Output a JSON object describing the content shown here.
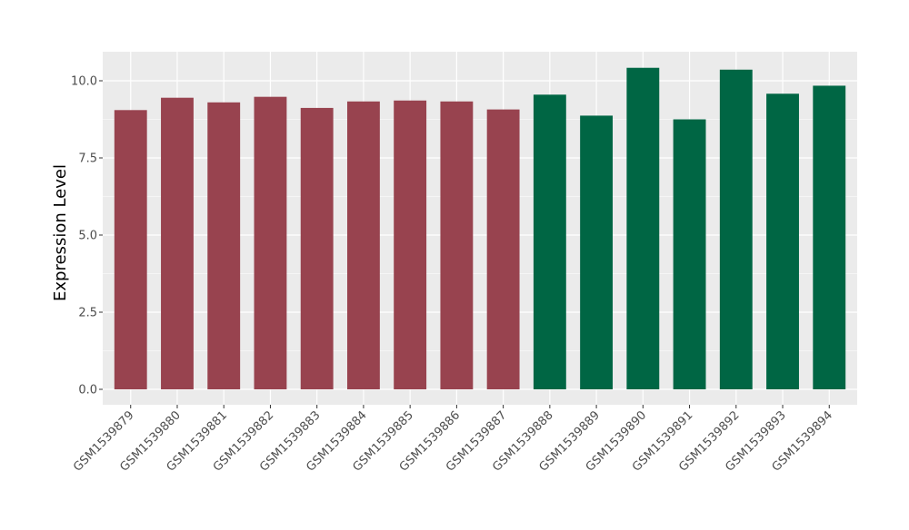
{
  "chart_data": {
    "type": "bar",
    "ylabel": "Expression Level",
    "xlabel": "",
    "title": "",
    "ylim": [
      0,
      10.9
    ],
    "yticks": [
      0.0,
      2.5,
      5.0,
      7.5,
      10.0
    ],
    "ytick_labels": [
      "0.0",
      "2.5",
      "5.0",
      "7.5",
      "10.0"
    ],
    "grid": true,
    "panel_background": "#ebebeb",
    "grid_color": "#ffffff",
    "categories": [
      "GSM1539879",
      "GSM1539880",
      "GSM1539881",
      "GSM1539882",
      "GSM1539883",
      "GSM1539884",
      "GSM1539885",
      "GSM1539886",
      "GSM1539887",
      "GSM1539888",
      "GSM1539889",
      "GSM1539890",
      "GSM1539891",
      "GSM1539892",
      "GSM1539893",
      "GSM1539894"
    ],
    "values": [
      9.05,
      9.45,
      9.3,
      9.48,
      9.12,
      9.33,
      9.36,
      9.33,
      9.07,
      9.55,
      8.87,
      10.42,
      8.75,
      10.36,
      9.58,
      9.84
    ],
    "bar_colors": [
      "#98434f",
      "#98434f",
      "#98434f",
      "#98434f",
      "#98434f",
      "#98434f",
      "#98434f",
      "#98434f",
      "#98434f",
      "#006644",
      "#006644",
      "#006644",
      "#006644",
      "#006644",
      "#006644",
      "#006644"
    ]
  }
}
